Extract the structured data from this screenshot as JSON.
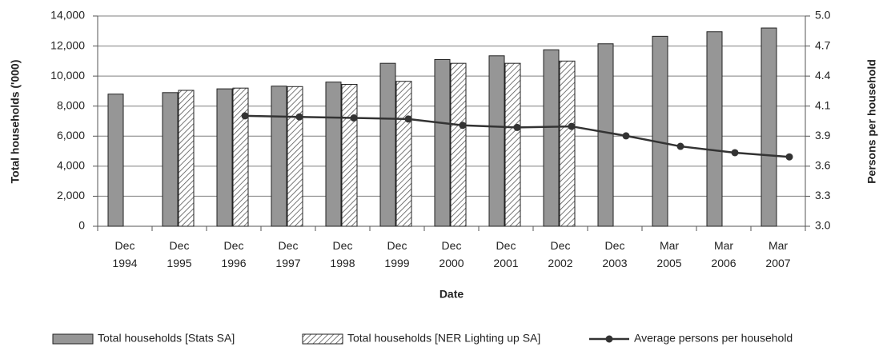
{
  "chart_data": {
    "type": "bar",
    "y_label": "Total households ('000)",
    "y2_label": "Persons per household",
    "x_label": "Date",
    "categories": [
      "Dec 1994",
      "Dec 1995",
      "Dec 1996",
      "Dec 1997",
      "Dec 1998",
      "Dec 1999",
      "Dec 2000",
      "Dec 2001",
      "Dec 2002",
      "Dec 2003",
      "Mar 2005",
      "Mar 2006",
      "Mar 2007"
    ],
    "series": [
      {
        "name": "Total households [Stats SA]",
        "type": "bar",
        "color": "#969696",
        "values": [
          8800,
          8900,
          9150,
          9330,
          9600,
          10850,
          11100,
          11350,
          11750,
          12150,
          12650,
          12950,
          13200
        ]
      },
      {
        "name": "Total households [NER Lighting up SA]",
        "type": "bar",
        "pattern": "hatch",
        "color": "#ffffff",
        "values": [
          null,
          9050,
          9200,
          9300,
          9450,
          9650,
          10850,
          10850,
          11000,
          null,
          null,
          null,
          null
        ]
      },
      {
        "name": "Average persons per household",
        "type": "line",
        "axis": "y2",
        "color": "#333333",
        "values": [
          null,
          null,
          4.05,
          4.04,
          4.03,
          4.02,
          3.96,
          3.94,
          3.95,
          3.86,
          3.76,
          3.7,
          3.66
        ]
      }
    ],
    "ylim": [
      0,
      14000
    ],
    "yticks": [
      0,
      {
        "value": 2000,
        "label": "2,000"
      },
      {
        "value": 4000,
        "label": "4,000"
      },
      {
        "value": 6000,
        "label": "6,000"
      },
      {
        "value": 8000,
        "label": "8,000"
      },
      {
        "value": 10000,
        "label": "10,000"
      },
      {
        "value": 12000,
        "label": "12,000"
      },
      {
        "value": 14000,
        "label": "14,000"
      }
    ],
    "y2lim": [
      3,
      5
    ],
    "y2ticks": [
      {
        "value": 3,
        "label": "3.0"
      },
      {
        "value": 3.2857,
        "label": "3.3"
      },
      {
        "value": 3.5714,
        "label": "3.6"
      },
      {
        "value": 3.8571,
        "label": "3.9"
      },
      {
        "value": 4.1429,
        "label": "4.1"
      },
      {
        "value": 4.4286,
        "label": "4.4"
      },
      {
        "value": 4.7143,
        "label": "4.7"
      },
      {
        "value": 5,
        "label": "5.0"
      }
    ],
    "grid": true,
    "legend": "bottom"
  }
}
